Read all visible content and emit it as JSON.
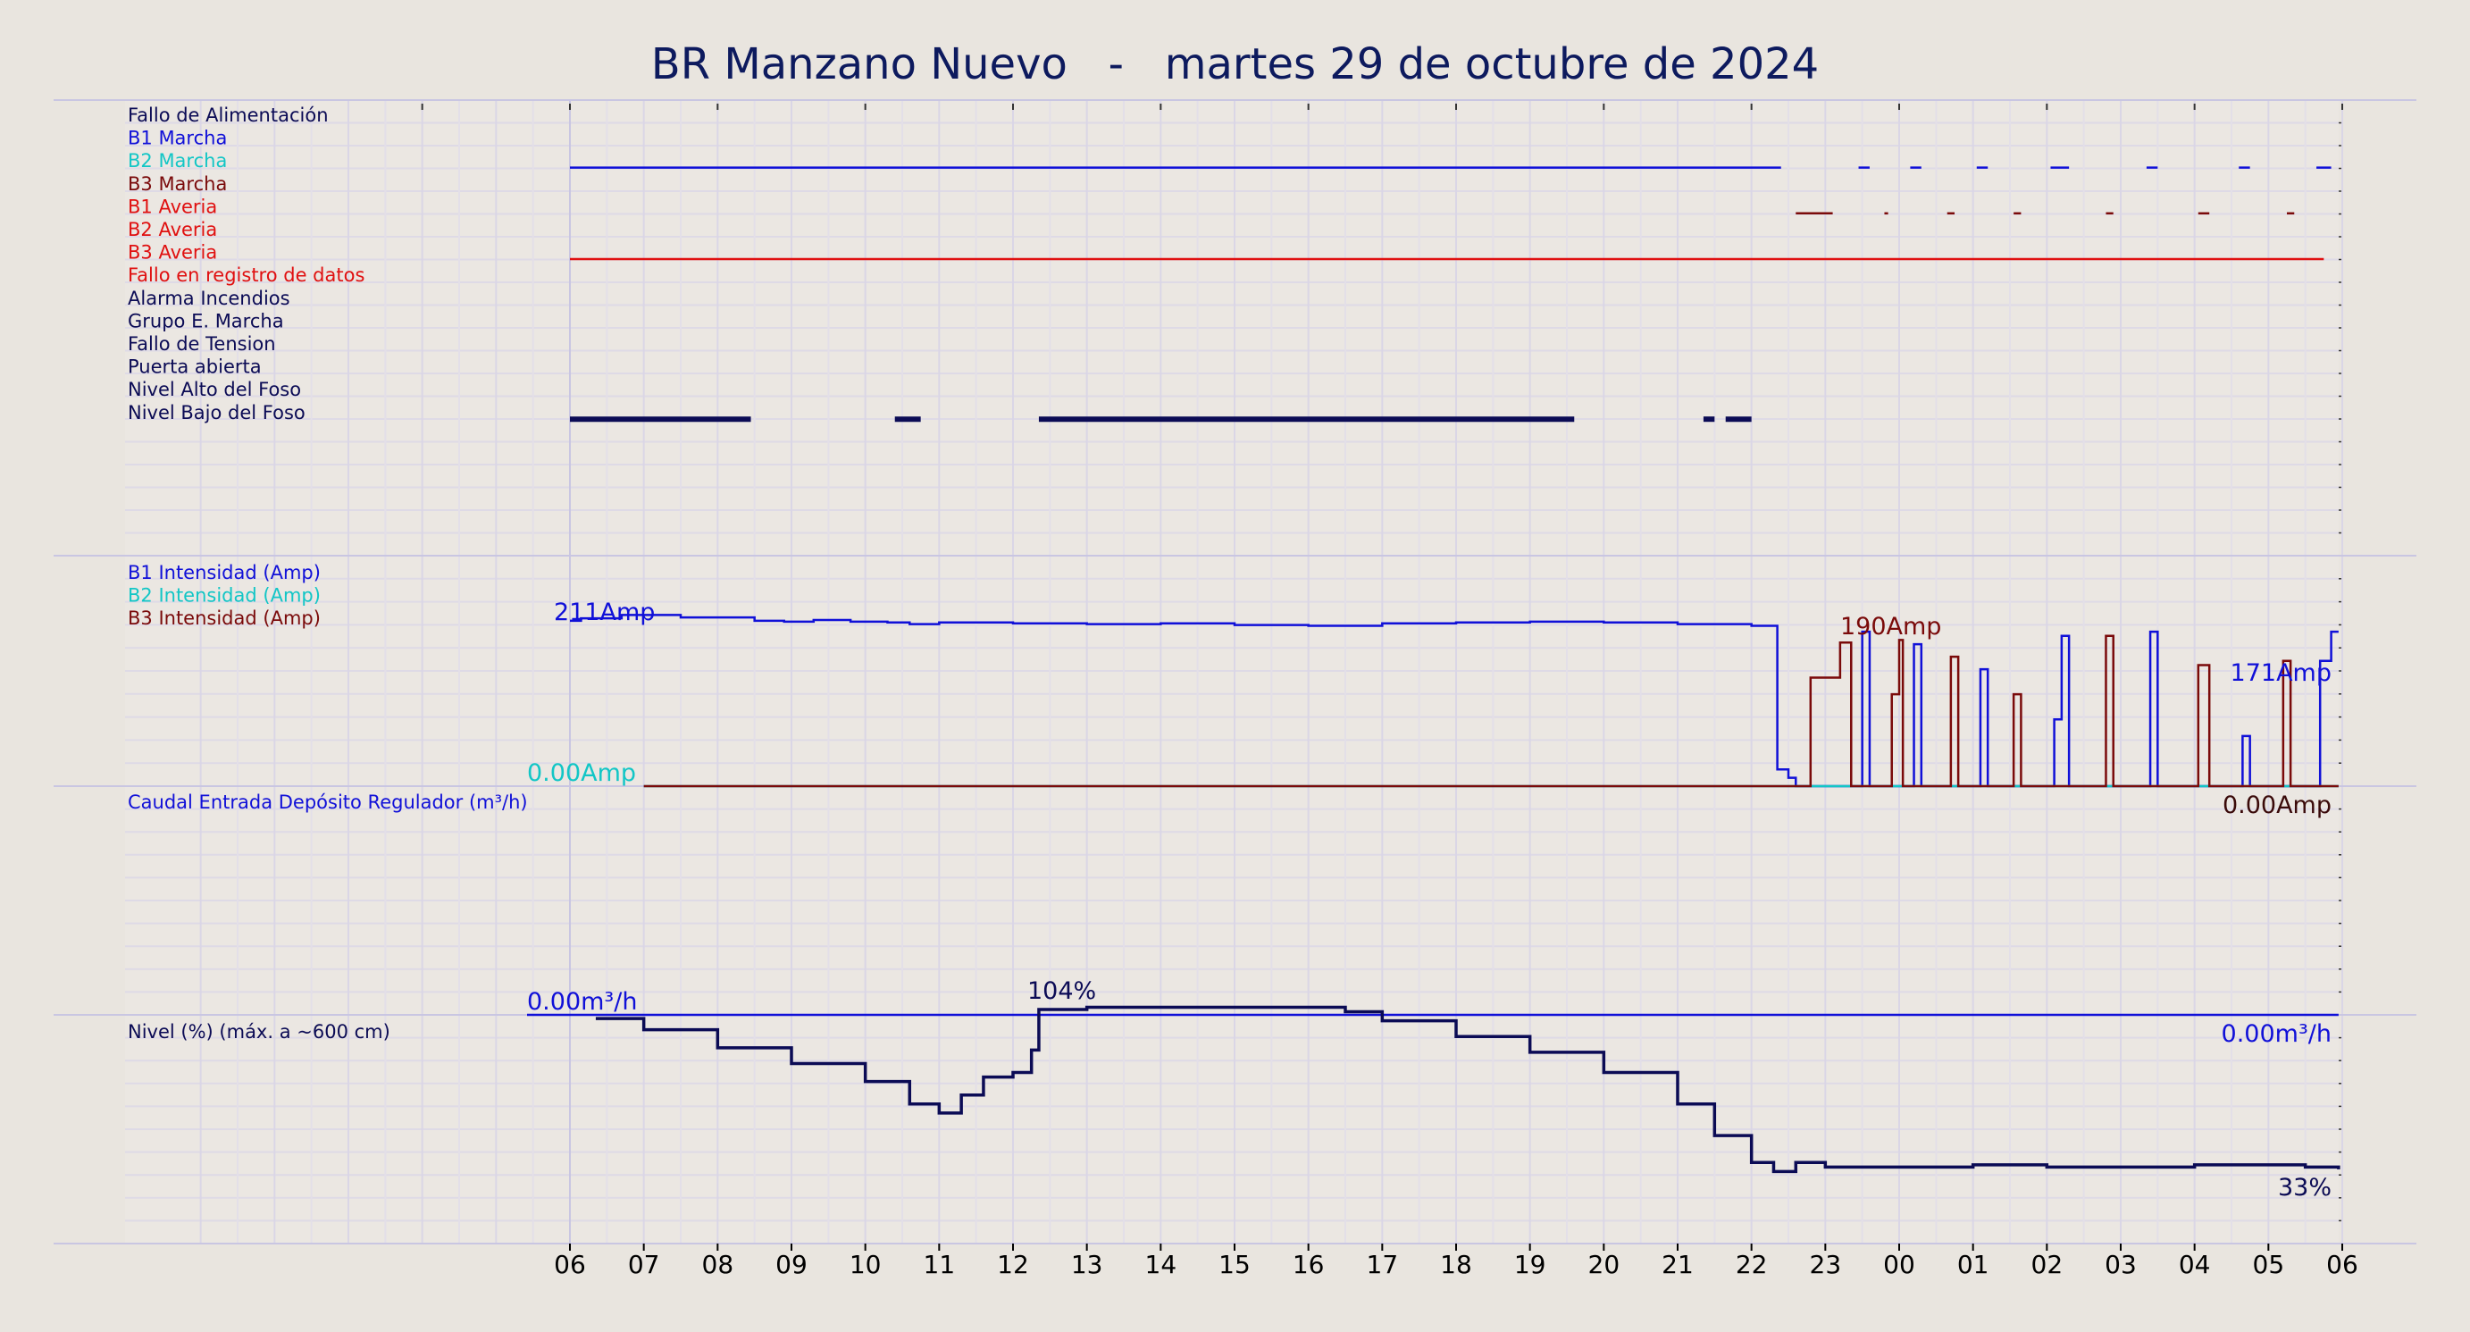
{
  "title": "BR Manzano Nuevo   -   martes 29 de octubre de 2024",
  "colors": {
    "background": "#e9e5df",
    "b1": "#1010d8",
    "b2": "#12c6c6",
    "b3": "#7a0a0a",
    "red": "#e01010",
    "navy": "#0b0b55",
    "grid": "#dcd8ec"
  },
  "chart_data": [
    {
      "type": "line",
      "panel": "digital-signals",
      "time_range": [
        "06",
        "06"
      ],
      "series": [
        {
          "name": "Fallo de Alimentación",
          "color": "#0b0b55",
          "on": []
        },
        {
          "name": "B1 Marcha",
          "color": "#1010d8",
          "on": [
            [
              0,
              16.4
            ],
            [
              17.45,
              17.6
            ],
            [
              18.15,
              18.3
            ],
            [
              19.05,
              19.2
            ],
            [
              20.05,
              20.3
            ],
            [
              21.35,
              21.5
            ],
            [
              22.6,
              22.75
            ],
            [
              23.65,
              23.85
            ]
          ]
        },
        {
          "name": "B2 Marcha",
          "color": "#12c6c6",
          "on": []
        },
        {
          "name": "B3 Marcha",
          "color": "#7a0a0a",
          "on": [
            [
              16.6,
              17.1
            ],
            [
              17.8,
              17.85
            ],
            [
              18.65,
              18.75
            ],
            [
              19.55,
              19.65
            ],
            [
              20.8,
              20.9
            ],
            [
              22.05,
              22.2
            ],
            [
              23.25,
              23.35
            ]
          ]
        },
        {
          "name": "B1 Averia",
          "color": "#e01010",
          "on": []
        },
        {
          "name": "B2 Averia",
          "color": "#e01010",
          "on": [
            [
              0,
              23.75
            ]
          ]
        },
        {
          "name": "B3 Averia",
          "color": "#e01010",
          "on": []
        },
        {
          "name": "Fallo en registro de datos",
          "color": "#e01010",
          "on": []
        },
        {
          "name": "Alarma Incendios",
          "color": "#0b0b55",
          "on": []
        },
        {
          "name": "Grupo E. Marcha",
          "color": "#0b0b55",
          "on": []
        },
        {
          "name": "Fallo de Tension",
          "color": "#0b0b55",
          "on": []
        },
        {
          "name": "Puerta abierta",
          "color": "#0b0b55",
          "on": []
        },
        {
          "name": "Nivel Alto del Foso",
          "color": "#0b0b55",
          "on": [
            [
              0,
              2.45
            ],
            [
              4.4,
              4.75
            ],
            [
              6.35,
              13.6
            ],
            [
              15.35,
              15.5
            ],
            [
              15.65,
              16.0
            ]
          ]
        },
        {
          "name": "Nivel Bajo del Foso",
          "color": "#0b0b55",
          "on": []
        }
      ]
    },
    {
      "type": "line",
      "panel": "intensity",
      "y_unit": "Amp",
      "ylim": [
        0,
        230
      ],
      "series": [
        {
          "name": "B1 Intensidad (Amp)",
          "color": "#1010d8",
          "points": [
            [
              0,
              198
            ],
            [
              0.15,
              201
            ],
            [
              0.7,
              205
            ],
            [
              1.5,
              202
            ],
            [
              2.5,
              198
            ],
            [
              2.9,
              197
            ],
            [
              3.3,
              199
            ],
            [
              3.8,
              197
            ],
            [
              4.3,
              196
            ],
            [
              4.6,
              194
            ],
            [
              5,
              196
            ],
            [
              6,
              195
            ],
            [
              7,
              194
            ],
            [
              8,
              195
            ],
            [
              9,
              193
            ],
            [
              10,
              192
            ],
            [
              11,
              195
            ],
            [
              12,
              196
            ],
            [
              13,
              197
            ],
            [
              14,
              196
            ],
            [
              15,
              194
            ],
            [
              16,
              192
            ],
            [
              16.3,
              192
            ],
            [
              16.35,
              20
            ],
            [
              16.5,
              10
            ],
            [
              16.6,
              0
            ],
            [
              17.45,
              0
            ],
            [
              17.5,
              185
            ],
            [
              17.6,
              0
            ],
            [
              18.15,
              0
            ],
            [
              18.2,
              170
            ],
            [
              18.3,
              0
            ],
            [
              19.05,
              0
            ],
            [
              19.1,
              140
            ],
            [
              19.2,
              0
            ],
            [
              20.05,
              0
            ],
            [
              20.1,
              80
            ],
            [
              20.2,
              180
            ],
            [
              20.3,
              0
            ],
            [
              21.35,
              0
            ],
            [
              21.4,
              185
            ],
            [
              21.5,
              0
            ],
            [
              22.6,
              0
            ],
            [
              22.65,
              60
            ],
            [
              22.75,
              0
            ],
            [
              23.65,
              0
            ],
            [
              23.7,
              150
            ],
            [
              23.85,
              185
            ],
            [
              23.95,
              185
            ]
          ],
          "labels": [
            {
              "text": "211Amp",
              "x": 0
            },
            {
              "text": "171Amp",
              "x": 23.1
            }
          ]
        },
        {
          "name": "B2 Intensidad (Amp)",
          "color": "#12c6c6",
          "points": [
            [
              1,
              0
            ],
            [
              23.95,
              0
            ]
          ],
          "labels": [
            {
              "text": "0.00Amp",
              "x": 0
            }
          ]
        },
        {
          "name": "B3 Intensidad (Amp)",
          "color": "#7a0a0a",
          "points": [
            [
              1,
              0
            ],
            [
              16.6,
              0
            ],
            [
              16.8,
              130
            ],
            [
              17.2,
              172
            ],
            [
              17.35,
              0
            ],
            [
              17.9,
              110
            ],
            [
              18,
              175
            ],
            [
              18.05,
              0
            ],
            [
              18.7,
              155
            ],
            [
              18.8,
              0
            ],
            [
              19.55,
              110
            ],
            [
              19.65,
              0
            ],
            [
              20.8,
              180
            ],
            [
              20.9,
              0
            ],
            [
              22.05,
              145
            ],
            [
              22.2,
              0
            ],
            [
              23.2,
              150
            ],
            [
              23.3,
              0
            ],
            [
              23.95,
              0
            ]
          ],
          "labels": [
            {
              "text": "190Amp",
              "x": 17.5
            },
            {
              "text": "0.00Amp",
              "x": 23.9
            }
          ]
        }
      ]
    },
    {
      "type": "line",
      "panel": "flow",
      "series": [
        {
          "name": "Caudal Entrada Depósito Regulador (m³/h)",
          "color": "#1010d8",
          "points": [
            [
              0,
              0
            ],
            [
              23.95,
              0
            ]
          ],
          "labels": [
            {
              "text": "0.00m³/h",
              "x": 0
            },
            {
              "text": "0.00m³/h",
              "x": 23.9
            }
          ]
        }
      ]
    },
    {
      "type": "line",
      "panel": "level",
      "ylim": [
        0,
        104
      ],
      "series": [
        {
          "name": "Nivel (%) (máx. a ~600 cm)",
          "color": "#0b0b55",
          "points": [
            [
              0.35,
              100
            ],
            [
              1,
              95
            ],
            [
              2,
              87
            ],
            [
              3,
              80
            ],
            [
              4,
              72
            ],
            [
              4.6,
              62
            ],
            [
              5,
              58
            ],
            [
              5.3,
              66
            ],
            [
              5.6,
              74
            ],
            [
              6,
              76
            ],
            [
              6.25,
              86
            ],
            [
              6.35,
              104
            ],
            [
              7,
              105
            ],
            [
              10,
              105
            ],
            [
              10.5,
              103
            ],
            [
              11,
              99
            ],
            [
              12,
              92
            ],
            [
              13,
              85
            ],
            [
              14,
              76
            ],
            [
              15,
              62
            ],
            [
              15.5,
              48
            ],
            [
              16,
              36
            ],
            [
              16.3,
              32
            ],
            [
              16.6,
              36
            ],
            [
              17,
              34
            ],
            [
              18,
              34
            ],
            [
              19,
              35
            ],
            [
              20,
              34
            ],
            [
              21,
              34
            ],
            [
              22,
              35
            ],
            [
              23,
              35
            ],
            [
              23.5,
              34
            ],
            [
              23.95,
              33
            ]
          ],
          "labels": [
            {
              "text": "104%",
              "x": 6.65
            },
            {
              "text": "33%",
              "x": 23.8
            }
          ]
        }
      ]
    }
  ],
  "x_ticks": [
    "06",
    "07",
    "08",
    "09",
    "10",
    "11",
    "12",
    "13",
    "14",
    "15",
    "16",
    "17",
    "18",
    "19",
    "20",
    "21",
    "22",
    "23",
    "00",
    "01",
    "02",
    "03",
    "04",
    "05",
    "06"
  ]
}
